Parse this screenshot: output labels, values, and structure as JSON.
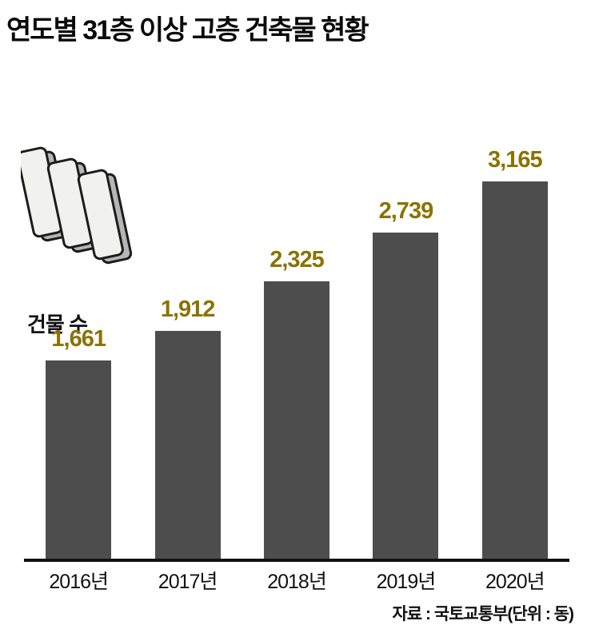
{
  "title": "연도별 31층 이상 고층 건축물 현황",
  "y_label": "건물 수",
  "source": "자료 : 국토교통부(단위 : 동)",
  "colors": {
    "bar": "#4d4d4d",
    "value_label": "#8a7300",
    "axis": "#111111",
    "background": "#ffffff"
  },
  "chart_data": {
    "type": "bar",
    "title": "연도별 31층 이상 고층 건축물 현황",
    "categories": [
      "2016년",
      "2017년",
      "2018년",
      "2019년",
      "2020년"
    ],
    "values": [
      1661,
      1912,
      2325,
      2739,
      3165
    ],
    "value_labels": [
      "1,661",
      "1,912",
      "2,325",
      "2,739",
      "3,165"
    ],
    "xlabel": "",
    "ylabel": "건물 수",
    "ylim": [
      0,
      3300
    ],
    "unit": "동",
    "grid": false,
    "legend": "none",
    "source": "자료 : 국토교통부(단위 : 동)"
  }
}
